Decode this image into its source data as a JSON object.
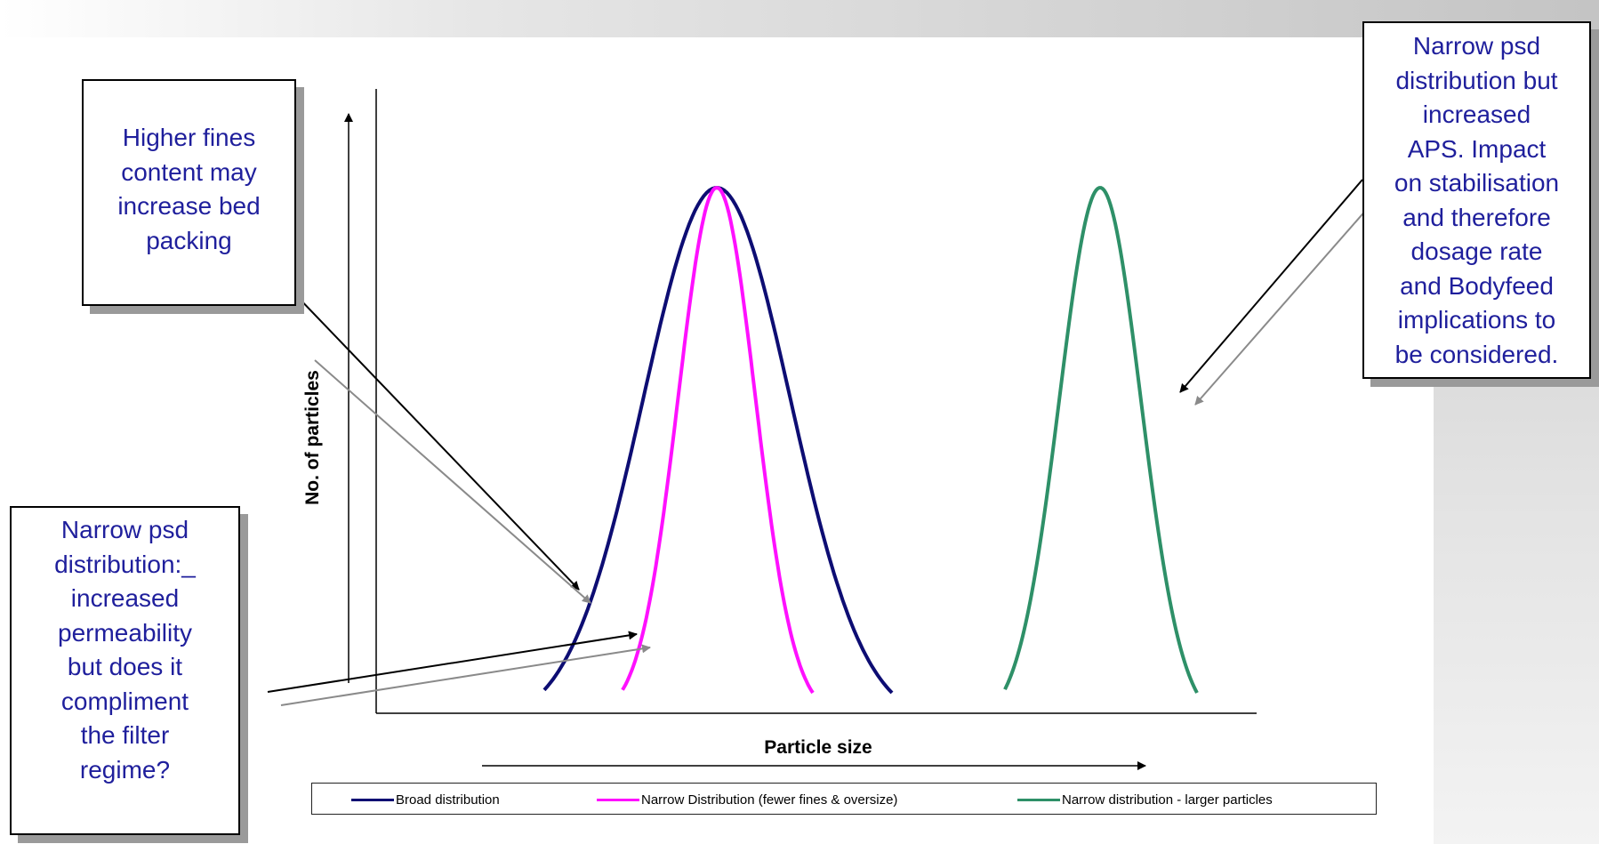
{
  "diagram": {
    "y_axis_label": "No. of particles",
    "x_axis_label": "Particle size",
    "callouts": {
      "fines": "Higher fines\ncontent may\nincrease bed\npacking",
      "narrow": "Narrow psd\ndistribution:_\nincreased\npermeability\nbut does it\ncompliment\nthe filter\nregime?",
      "larger": "Narrow psd\ndistribution but\nincreased\nAPS. Impact\non stabilisation\nand therefore\ndosage rate\nand Bodyfeed\nimplications to\nbe considered."
    },
    "legend": [
      {
        "label": "Broad distribution",
        "color": "#0d0d73"
      },
      {
        "label": "Narrow Distribution (fewer fines & oversize)",
        "color": "#ff10ff"
      },
      {
        "label": "Narrow distribution - larger particles",
        "color": "#2e9068"
      }
    ],
    "colors": {
      "callout_text": "#1f1f9c",
      "broad_curve": "#0d0d73",
      "narrow_curve": "#ff10ff",
      "larger_curve": "#2e9068"
    }
  }
}
